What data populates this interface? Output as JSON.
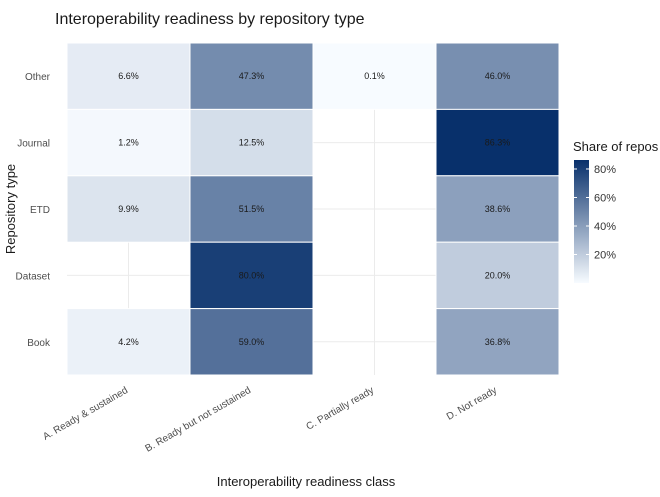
{
  "chart_data": {
    "type": "heatmap",
    "title": "Interoperability readiness by repository type",
    "xlabel": "Interoperability readiness class",
    "ylabel": "Repository type",
    "x_categories": [
      "A. Ready & sustained",
      "B. Ready but not sustained",
      "C. Partially ready",
      "D. Not ready"
    ],
    "y_categories": [
      "Other",
      "Journal",
      "ETD",
      "Dataset",
      "Book"
    ],
    "cells": [
      {
        "y": "Other",
        "x": "A. Ready & sustained",
        "value": 6.6,
        "label": "6.6%"
      },
      {
        "y": "Other",
        "x": "B. Ready but not sustained",
        "value": 47.3,
        "label": "47.3%"
      },
      {
        "y": "Other",
        "x": "C. Partially ready",
        "value": 0.1,
        "label": "0.1%"
      },
      {
        "y": "Other",
        "x": "D. Not ready",
        "value": 46.0,
        "label": "46.0%"
      },
      {
        "y": "Journal",
        "x": "A. Ready & sustained",
        "value": 1.2,
        "label": "1.2%"
      },
      {
        "y": "Journal",
        "x": "B. Ready but not sustained",
        "value": 12.5,
        "label": "12.5%"
      },
      {
        "y": "Journal",
        "x": "D. Not ready",
        "value": 86.3,
        "label": "86.3%"
      },
      {
        "y": "ETD",
        "x": "A. Ready & sustained",
        "value": 9.9,
        "label": "9.9%"
      },
      {
        "y": "ETD",
        "x": "B. Ready but not sustained",
        "value": 51.5,
        "label": "51.5%"
      },
      {
        "y": "ETD",
        "x": "D. Not ready",
        "value": 38.6,
        "label": "38.6%"
      },
      {
        "y": "Dataset",
        "x": "B. Ready but not sustained",
        "value": 80.0,
        "label": "80.0%"
      },
      {
        "y": "Dataset",
        "x": "D. Not ready",
        "value": 20.0,
        "label": "20.0%"
      },
      {
        "y": "Book",
        "x": "A. Ready & sustained",
        "value": 4.2,
        "label": "4.2%"
      },
      {
        "y": "Book",
        "x": "B. Ready but not sustained",
        "value": 59.0,
        "label": "59.0%"
      },
      {
        "y": "Book",
        "x": "D. Not ready",
        "value": 36.8,
        "label": "36.8%"
      }
    ],
    "legend": {
      "title": "Share of repos",
      "ticks": [
        20,
        40,
        60,
        80
      ],
      "tick_labels": [
        "20%",
        "40%",
        "60%",
        "80%"
      ],
      "range": [
        0,
        86.3
      ],
      "color_low": "#f7fbff",
      "color_high": "#08306b",
      "placement": "right"
    },
    "grid": true
  }
}
